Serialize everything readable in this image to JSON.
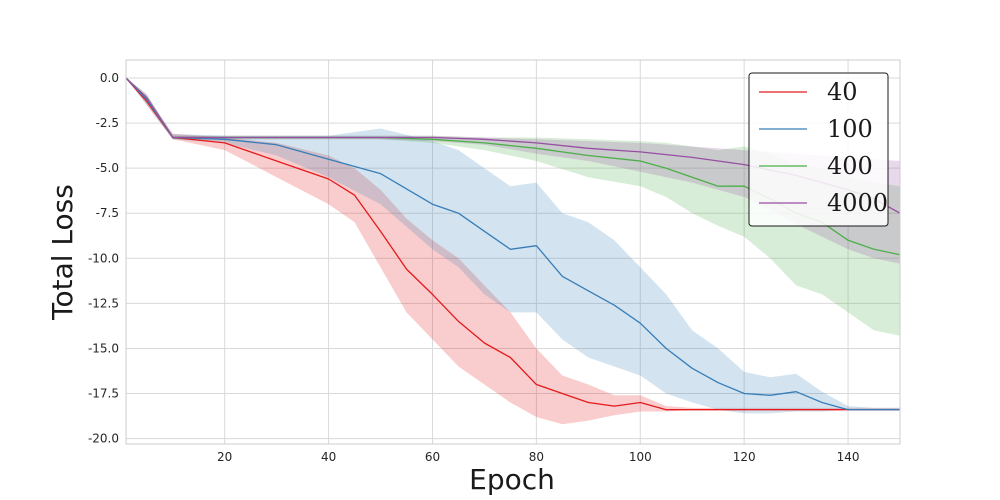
{
  "chart_data": {
    "type": "line",
    "title": "",
    "xlabel": "Epoch",
    "ylabel": "Total Loss",
    "xlim": [
      1,
      150
    ],
    "ylim": [
      -20.3,
      1.0
    ],
    "xticks": [
      20,
      40,
      60,
      80,
      100,
      120,
      140
    ],
    "yticks": [
      0.0,
      -2.5,
      -5.0,
      -7.5,
      -10.0,
      -12.5,
      -15.0,
      -17.5,
      -20.0
    ],
    "ytick_labels": [
      "0.0",
      "-2.5",
      "-5.0",
      "-7.5",
      "-10.0",
      "-12.5",
      "-15.0",
      "-17.5",
      "-20.0"
    ],
    "grid": true,
    "legend_position": "top-right",
    "series": [
      {
        "name": "40",
        "color": "#e41a1c",
        "x": [
          1,
          5,
          10,
          20,
          30,
          40,
          45,
          50,
          55,
          60,
          65,
          70,
          75,
          80,
          85,
          90,
          95,
          100,
          105,
          110,
          120,
          130,
          140,
          150
        ],
        "y": [
          0.0,
          -1.3,
          -3.3,
          -3.6,
          -4.6,
          -5.6,
          -6.5,
          -8.5,
          -10.6,
          -12.0,
          -13.5,
          -14.7,
          -15.5,
          -17.0,
          -17.5,
          -18.0,
          -18.2,
          -18.0,
          -18.4,
          -18.4,
          -18.4,
          -18.4,
          -18.4,
          -18.4
        ],
        "lower": [
          0.0,
          -1.5,
          -3.4,
          -4.0,
          -5.5,
          -7.0,
          -8.0,
          -10.5,
          -13.0,
          -14.5,
          -16.0,
          -17.0,
          -18.0,
          -18.8,
          -19.2,
          -19.0,
          -18.7,
          -18.5,
          -18.5,
          -18.4,
          -18.4,
          -18.4,
          -18.4,
          -18.4
        ],
        "upper": [
          0.0,
          -1.1,
          -3.1,
          -3.3,
          -3.6,
          -4.3,
          -5.0,
          -6.2,
          -7.8,
          -9.0,
          -10.0,
          -11.5,
          -13.0,
          -15.0,
          -16.5,
          -17.0,
          -17.6,
          -17.6,
          -18.2,
          -18.3,
          -18.3,
          -18.3,
          -18.3,
          -18.3
        ]
      },
      {
        "name": "100",
        "color": "#377eb8",
        "x": [
          1,
          5,
          10,
          20,
          30,
          40,
          50,
          60,
          65,
          70,
          75,
          80,
          85,
          90,
          95,
          100,
          105,
          110,
          115,
          120,
          125,
          130,
          135,
          140,
          145,
          150
        ],
        "y": [
          0.0,
          -1.2,
          -3.3,
          -3.4,
          -3.7,
          -4.5,
          -5.3,
          -7.0,
          -7.5,
          -8.5,
          -9.5,
          -9.3,
          -11.0,
          -11.8,
          -12.6,
          -13.6,
          -15.0,
          -16.1,
          -16.9,
          -17.5,
          -17.6,
          -17.4,
          -18.0,
          -18.4,
          -18.4,
          -18.4
        ],
        "lower": [
          0.0,
          -1.5,
          -3.4,
          -3.6,
          -4.3,
          -5.5,
          -7.0,
          -9.5,
          -10.5,
          -12.0,
          -13.0,
          -13.0,
          -14.5,
          -15.5,
          -16.0,
          -16.5,
          -17.5,
          -18.0,
          -18.4,
          -18.6,
          -18.6,
          -18.5,
          -18.5,
          -18.4,
          -18.4,
          -18.4
        ],
        "upper": [
          0.0,
          -1.0,
          -3.1,
          -3.2,
          -3.2,
          -3.2,
          -2.8,
          -3.5,
          -4.0,
          -5.0,
          -6.0,
          -5.8,
          -7.5,
          -8.0,
          -9.0,
          -10.5,
          -12.0,
          -14.0,
          -15.0,
          -16.3,
          -16.6,
          -16.4,
          -17.4,
          -18.2,
          -18.3,
          -18.3
        ]
      },
      {
        "name": "400",
        "color": "#4daf4a",
        "x": [
          1,
          5,
          10,
          20,
          30,
          40,
          50,
          60,
          70,
          80,
          90,
          100,
          105,
          110,
          115,
          120,
          125,
          130,
          135,
          140,
          145,
          150
        ],
        "y": [
          0.0,
          -1.1,
          -3.3,
          -3.3,
          -3.3,
          -3.3,
          -3.3,
          -3.4,
          -3.6,
          -3.9,
          -4.3,
          -4.6,
          -5.0,
          -5.5,
          -6.0,
          -6.0,
          -6.7,
          -7.5,
          -8.0,
          -9.0,
          -9.5,
          -9.8
        ],
        "lower": [
          0.0,
          -1.3,
          -3.4,
          -3.4,
          -3.4,
          -3.4,
          -3.4,
          -3.6,
          -4.0,
          -4.6,
          -5.5,
          -6.0,
          -6.6,
          -7.5,
          -8.2,
          -8.8,
          -10.0,
          -11.5,
          -12.0,
          -13.0,
          -14.0,
          -14.3
        ],
        "upper": [
          0.0,
          -0.9,
          -3.2,
          -3.2,
          -3.2,
          -3.2,
          -3.2,
          -3.2,
          -3.3,
          -3.3,
          -3.4,
          -3.5,
          -3.6,
          -3.8,
          -4.0,
          -3.8,
          -4.2,
          -4.8,
          -5.0,
          -5.5,
          -5.8,
          -6.0
        ]
      },
      {
        "name": "4000",
        "color": "#984ea3",
        "x": [
          1,
          5,
          10,
          20,
          30,
          40,
          50,
          60,
          70,
          80,
          90,
          100,
          110,
          120,
          125,
          130,
          135,
          140,
          145,
          150
        ],
        "y": [
          0.0,
          -1.1,
          -3.3,
          -3.3,
          -3.3,
          -3.3,
          -3.3,
          -3.3,
          -3.4,
          -3.6,
          -3.9,
          -4.1,
          -4.4,
          -4.8,
          -5.1,
          -5.4,
          -5.8,
          -6.2,
          -6.7,
          -7.5
        ],
        "lower": [
          0.0,
          -1.3,
          -3.4,
          -3.4,
          -3.4,
          -3.4,
          -3.4,
          -3.5,
          -3.7,
          -4.2,
          -4.6,
          -5.2,
          -5.8,
          -6.6,
          -7.3,
          -8.1,
          -8.8,
          -9.5,
          -10.0,
          -10.3
        ],
        "upper": [
          0.0,
          -0.9,
          -3.2,
          -3.2,
          -3.2,
          -3.2,
          -3.2,
          -3.2,
          -3.3,
          -3.4,
          -3.5,
          -3.6,
          -3.8,
          -4.0,
          -4.1,
          -4.2,
          -4.3,
          -4.4,
          -4.5,
          -4.6
        ]
      }
    ]
  }
}
